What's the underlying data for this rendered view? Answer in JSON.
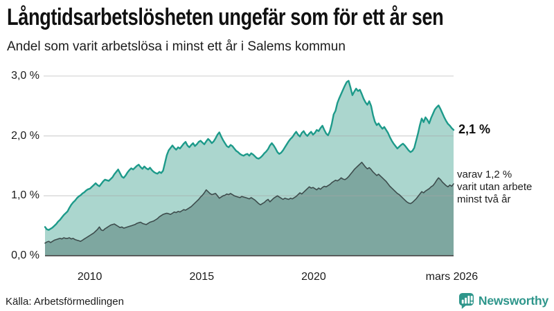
{
  "header": {
    "title": "Långtidsarbetslösheten ungefär som för ett år sen",
    "subtitle": "Andel som varit arbetslösa i minst ett år i Salems kommun"
  },
  "chart_data": {
    "type": "area",
    "title": "Långtidsarbetslösheten ungefär som för ett år sen",
    "subtitle": "Andel som varit arbetslösa i minst ett år i Salems kommun",
    "unit": "%",
    "x_domain": [
      2008.0,
      2026.25
    ],
    "ylim": [
      0,
      3.0
    ],
    "grid": true,
    "legend_position": "right-annotations",
    "x_ticks": [
      {
        "label": "2010",
        "x": 2010.0
      },
      {
        "label": "2015",
        "x": 2015.0
      },
      {
        "label": "2020",
        "x": 2020.0
      },
      {
        "label": "mars 2026",
        "x": 2026.17
      }
    ],
    "y_ticks": [
      {
        "label": "0,0 %",
        "value": 0.0
      },
      {
        "label": "1,0 %",
        "value": 1.0
      },
      {
        "label": "2,0 %",
        "value": 2.0
      },
      {
        "label": "3,0 %",
        "value": 3.0
      }
    ],
    "frequency": "monthly",
    "start_month": "2008-01",
    "end_month": "2026-03",
    "series": [
      {
        "name": "Andel arbetslösa minst ett år",
        "line_color": "#1d9a8a",
        "fill_color": "#abd6ce",
        "stroke_width": 2.4,
        "end_value": 2.1,
        "end_label": "2,1 %",
        "values": [
          0.48,
          0.44,
          0.43,
          0.45,
          0.47,
          0.5,
          0.53,
          0.57,
          0.6,
          0.64,
          0.68,
          0.71,
          0.74,
          0.8,
          0.85,
          0.89,
          0.92,
          0.96,
          0.99,
          1.01,
          1.04,
          1.06,
          1.09,
          1.11,
          1.12,
          1.15,
          1.18,
          1.21,
          1.18,
          1.16,
          1.2,
          1.24,
          1.27,
          1.26,
          1.25,
          1.28,
          1.31,
          1.36,
          1.4,
          1.44,
          1.38,
          1.32,
          1.3,
          1.34,
          1.39,
          1.43,
          1.46,
          1.44,
          1.47,
          1.5,
          1.52,
          1.48,
          1.45,
          1.49,
          1.46,
          1.44,
          1.47,
          1.43,
          1.4,
          1.38,
          1.37,
          1.4,
          1.38,
          1.42,
          1.55,
          1.68,
          1.76,
          1.8,
          1.84,
          1.8,
          1.77,
          1.81,
          1.79,
          1.83,
          1.87,
          1.9,
          1.84,
          1.81,
          1.85,
          1.88,
          1.83,
          1.86,
          1.9,
          1.92,
          1.89,
          1.86,
          1.91,
          1.95,
          1.92,
          1.88,
          1.91,
          1.96,
          2.02,
          2.06,
          1.99,
          1.93,
          1.88,
          1.83,
          1.81,
          1.85,
          1.83,
          1.79,
          1.75,
          1.73,
          1.7,
          1.68,
          1.67,
          1.69,
          1.7,
          1.67,
          1.71,
          1.69,
          1.66,
          1.63,
          1.62,
          1.64,
          1.67,
          1.71,
          1.74,
          1.78,
          1.84,
          1.88,
          1.84,
          1.79,
          1.73,
          1.7,
          1.72,
          1.76,
          1.81,
          1.86,
          1.91,
          1.95,
          1.98,
          2.03,
          2.07,
          2.02,
          1.99,
          2.05,
          2.08,
          2.03,
          2.0,
          2.04,
          2.07,
          2.02,
          2.05,
          2.1,
          2.08,
          2.13,
          2.17,
          2.1,
          2.04,
          2.01,
          2.08,
          2.2,
          2.36,
          2.42,
          2.55,
          2.63,
          2.7,
          2.77,
          2.84,
          2.9,
          2.92,
          2.81,
          2.68,
          2.74,
          2.79,
          2.75,
          2.77,
          2.7,
          2.62,
          2.56,
          2.52,
          2.58,
          2.5,
          2.35,
          2.24,
          2.18,
          2.21,
          2.16,
          2.12,
          2.15,
          2.1,
          2.05,
          1.98,
          1.92,
          1.87,
          1.83,
          1.79,
          1.82,
          1.85,
          1.87,
          1.84,
          1.8,
          1.76,
          1.73,
          1.75,
          1.8,
          1.92,
          2.04,
          2.18,
          2.29,
          2.23,
          2.31,
          2.27,
          2.21,
          2.3,
          2.37,
          2.44,
          2.48,
          2.51,
          2.45,
          2.38,
          2.31,
          2.25,
          2.2,
          2.17,
          2.13,
          2.1
        ]
      },
      {
        "name": "varav utan arbete minst två år",
        "line_color": "#3d4c4c",
        "fill_color": "#7ea7a0",
        "stroke_width": 1.6,
        "end_value": 1.2,
        "end_label": "varav 1,2 % varit utan arbete minst två år",
        "values": [
          0.21,
          0.23,
          0.24,
          0.22,
          0.24,
          0.26,
          0.27,
          0.28,
          0.29,
          0.28,
          0.3,
          0.29,
          0.29,
          0.3,
          0.28,
          0.29,
          0.27,
          0.26,
          0.25,
          0.24,
          0.26,
          0.28,
          0.3,
          0.32,
          0.34,
          0.36,
          0.38,
          0.41,
          0.44,
          0.48,
          0.43,
          0.42,
          0.45,
          0.47,
          0.49,
          0.51,
          0.52,
          0.53,
          0.51,
          0.49,
          0.47,
          0.48,
          0.46,
          0.47,
          0.48,
          0.49,
          0.5,
          0.51,
          0.52,
          0.54,
          0.55,
          0.56,
          0.54,
          0.53,
          0.52,
          0.54,
          0.56,
          0.57,
          0.58,
          0.6,
          0.62,
          0.65,
          0.67,
          0.69,
          0.7,
          0.71,
          0.7,
          0.69,
          0.71,
          0.73,
          0.72,
          0.74,
          0.73,
          0.75,
          0.77,
          0.76,
          0.78,
          0.8,
          0.82,
          0.85,
          0.88,
          0.91,
          0.94,
          0.98,
          1.01,
          1.05,
          1.1,
          1.07,
          1.04,
          1.02,
          1.03,
          1.04,
          1.0,
          0.96,
          0.98,
          1.0,
          1.01,
          1.03,
          1.02,
          1.04,
          1.02,
          1.0,
          0.99,
          0.98,
          0.97,
          0.99,
          0.98,
          0.97,
          0.96,
          0.95,
          0.97,
          0.95,
          0.93,
          0.9,
          0.87,
          0.85,
          0.87,
          0.89,
          0.92,
          0.94,
          0.9,
          0.93,
          0.96,
          0.98,
          1.0,
          0.98,
          0.96,
          0.94,
          0.96,
          0.95,
          0.94,
          0.96,
          0.95,
          0.97,
          0.99,
          1.02,
          1.05,
          1.03,
          1.06,
          1.09,
          1.12,
          1.15,
          1.13,
          1.14,
          1.12,
          1.1,
          1.13,
          1.11,
          1.14,
          1.16,
          1.15,
          1.17,
          1.19,
          1.22,
          1.24,
          1.26,
          1.25,
          1.27,
          1.3,
          1.28,
          1.27,
          1.29,
          1.32,
          1.36,
          1.4,
          1.44,
          1.47,
          1.5,
          1.53,
          1.56,
          1.52,
          1.48,
          1.45,
          1.47,
          1.44,
          1.4,
          1.37,
          1.34,
          1.36,
          1.33,
          1.3,
          1.27,
          1.24,
          1.2,
          1.16,
          1.13,
          1.1,
          1.07,
          1.04,
          1.02,
          0.99,
          0.96,
          0.93,
          0.9,
          0.88,
          0.87,
          0.89,
          0.92,
          0.95,
          0.99,
          1.03,
          1.07,
          1.05,
          1.08,
          1.1,
          1.12,
          1.15,
          1.17,
          1.21,
          1.26,
          1.3,
          1.27,
          1.23,
          1.2,
          1.17,
          1.15,
          1.18,
          1.16,
          1.2
        ]
      }
    ]
  },
  "annotations": {
    "total_label": "2,1 %",
    "subset_lines": [
      "varav 1,2 %",
      "varit utan arbete",
      "minst två år"
    ]
  },
  "footer": {
    "source": "Källa: Arbetsförmedlingen",
    "brand_name": "Newsworthy"
  },
  "colors": {
    "accent_teal": "#1d9a8a",
    "light_fill": "#abd6ce",
    "dark_fill": "#7ea7a0",
    "dark_line": "#3d4c4c",
    "gridline": "#d7d7d7",
    "axis_line": "#4d4d4d",
    "brand_teal": "#2e968b",
    "text": "#111111"
  }
}
